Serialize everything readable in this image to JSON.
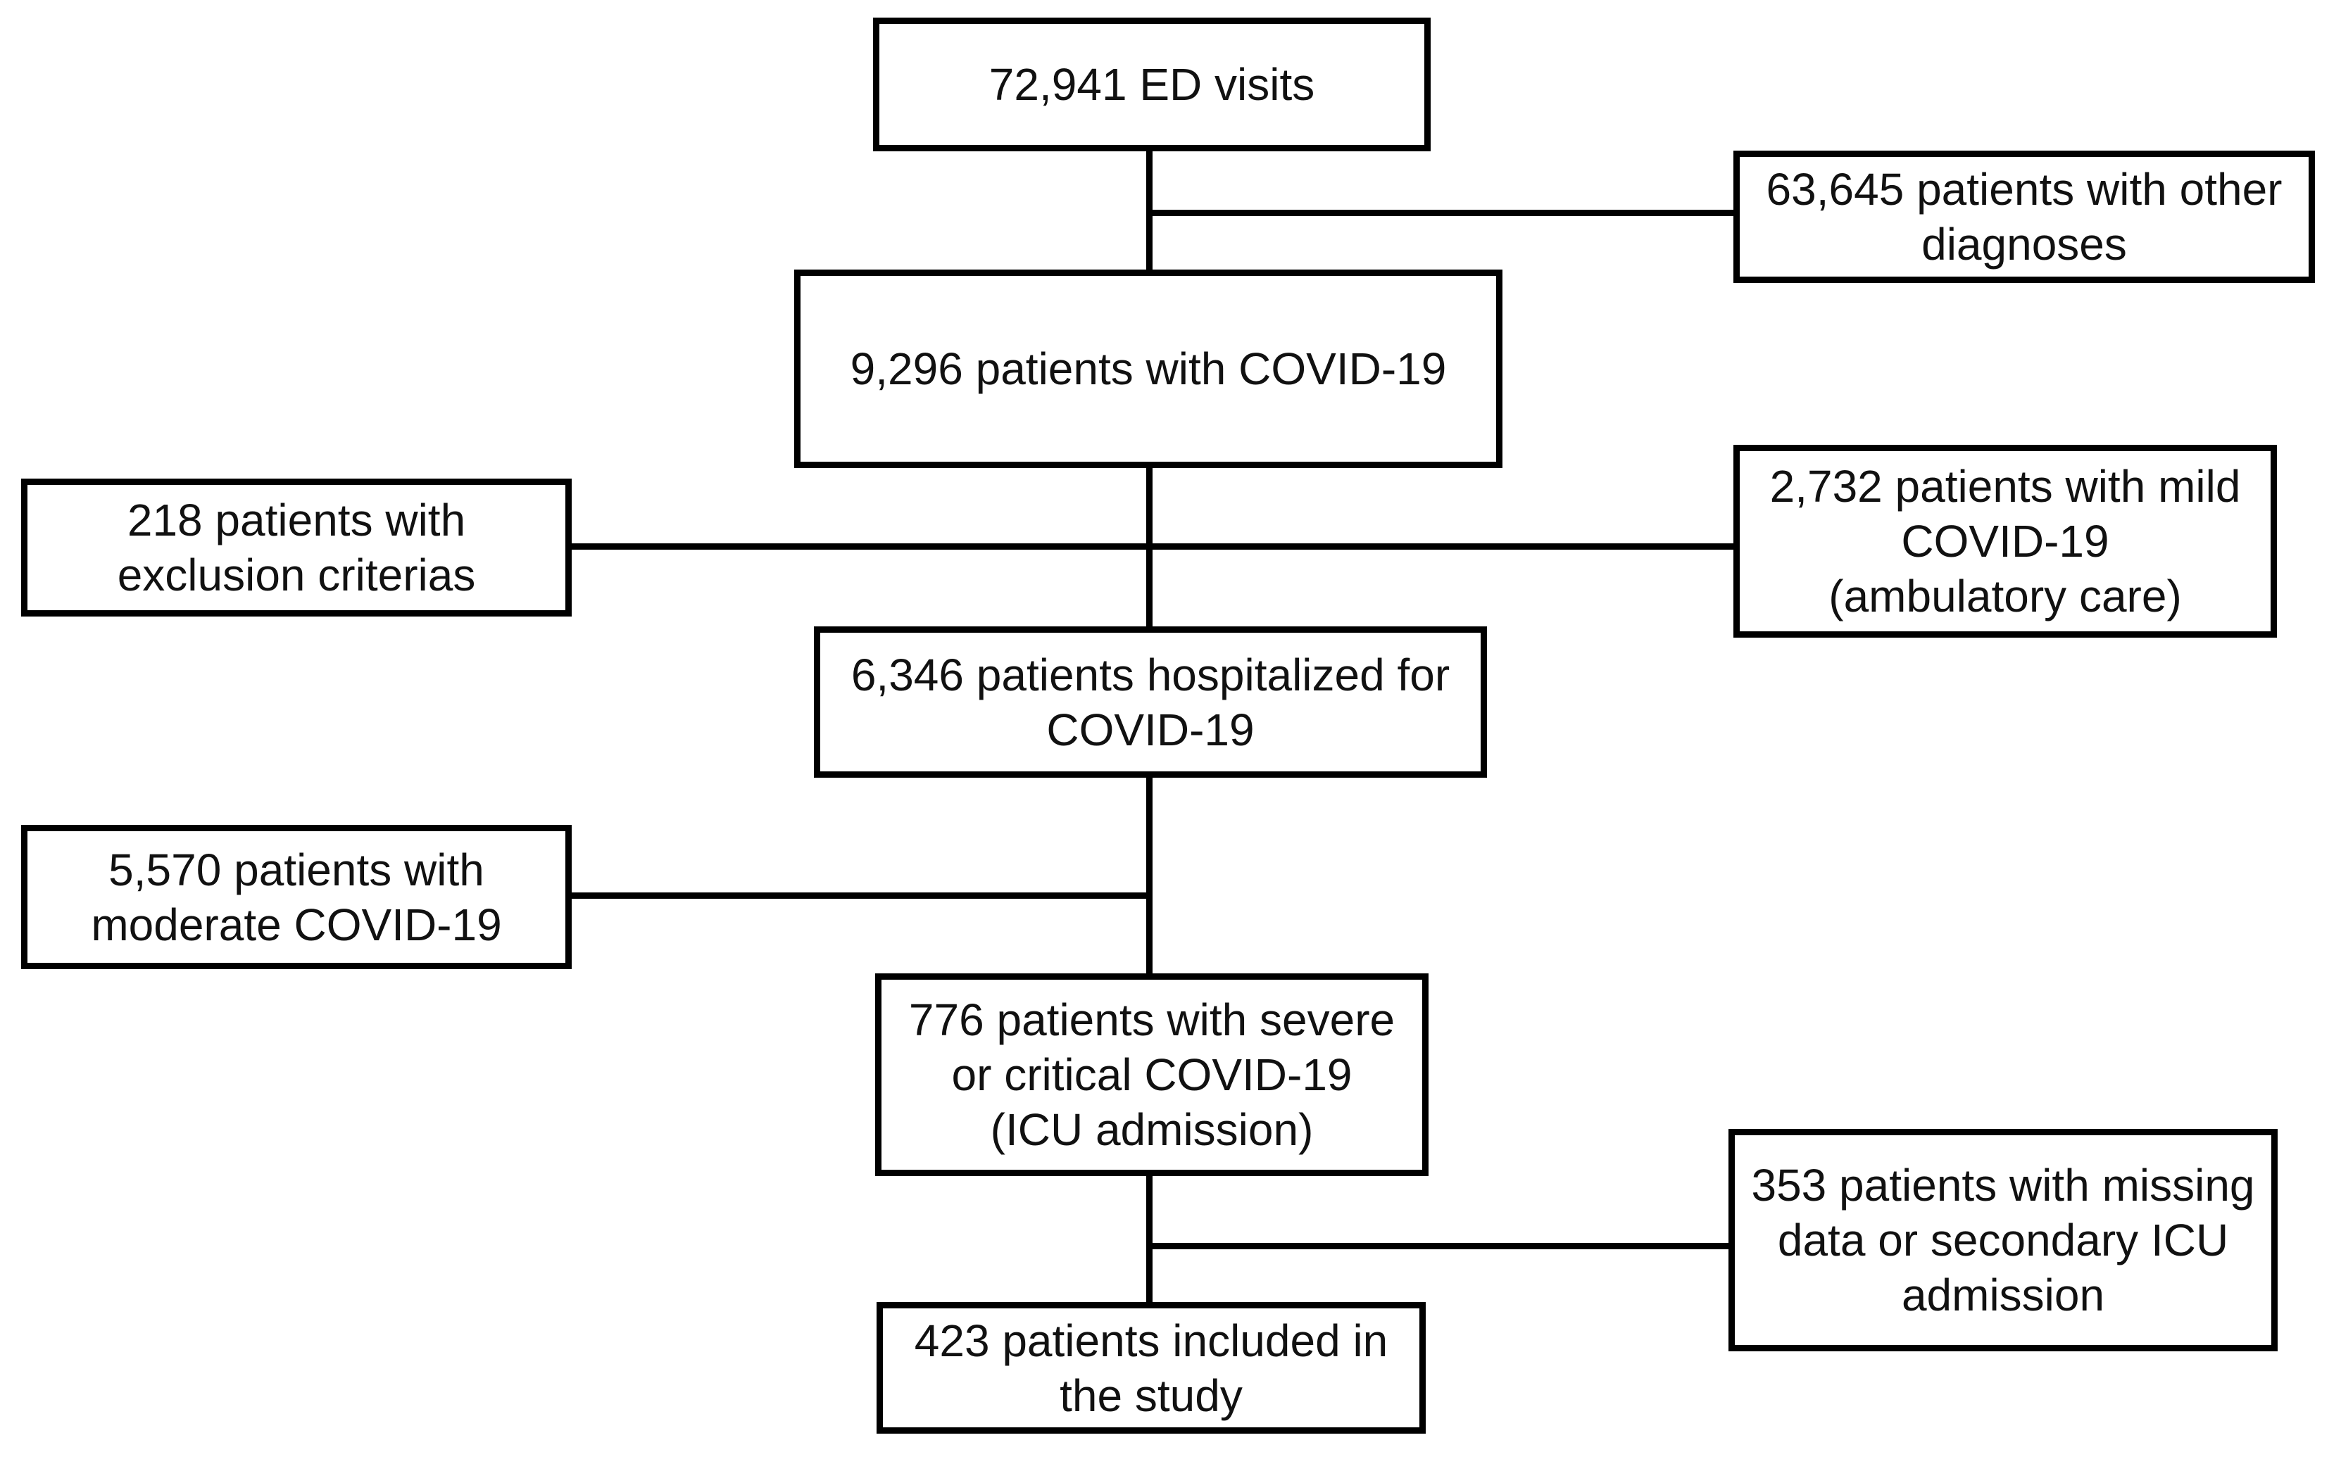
{
  "diagram": {
    "type": "flowchart",
    "background_color": "#ffffff",
    "box_border_color": "#000000",
    "line_color": "#000000",
    "text_color": "#111111",
    "nodes": {
      "ed_visits": {
        "value": "72,941",
        "text": "72,941 ED visits"
      },
      "other_diagnoses": {
        "value": "63,645",
        "text": "63,645 patients with other\ndiagnoses"
      },
      "covid_patients": {
        "value": "9,296",
        "text": "9,296 patients with COVID-19"
      },
      "exclusion": {
        "value": "218",
        "text": "218 patients with\nexclusion criterias"
      },
      "mild": {
        "value": "2,732",
        "text": "2,732 patients with mild\nCOVID-19\n(ambulatory care)"
      },
      "hospitalized": {
        "value": "6,346",
        "text": "6,346 patients hospitalized for\nCOVID-19"
      },
      "moderate": {
        "value": "5,570",
        "text": "5,570 patients with\nmoderate COVID-19"
      },
      "severe": {
        "value": "776",
        "text": "776 patients with severe\nor critical COVID-19\n(ICU admission)"
      },
      "missing": {
        "value": "353",
        "text": "353 patients with missing\ndata or secondary ICU\nadmission"
      },
      "included": {
        "value": "423",
        "text": "423 patients included in\nthe study"
      }
    },
    "edges": [
      {
        "from": "ed_visits",
        "to": "covid_patients"
      },
      {
        "from": "ed_visits",
        "to": "other_diagnoses"
      },
      {
        "from": "covid_patients",
        "to": "hospitalized"
      },
      {
        "from": "covid_patients",
        "to": "exclusion"
      },
      {
        "from": "covid_patients",
        "to": "mild"
      },
      {
        "from": "hospitalized",
        "to": "severe"
      },
      {
        "from": "hospitalized",
        "to": "moderate"
      },
      {
        "from": "severe",
        "to": "included"
      },
      {
        "from": "severe",
        "to": "missing"
      }
    ]
  }
}
